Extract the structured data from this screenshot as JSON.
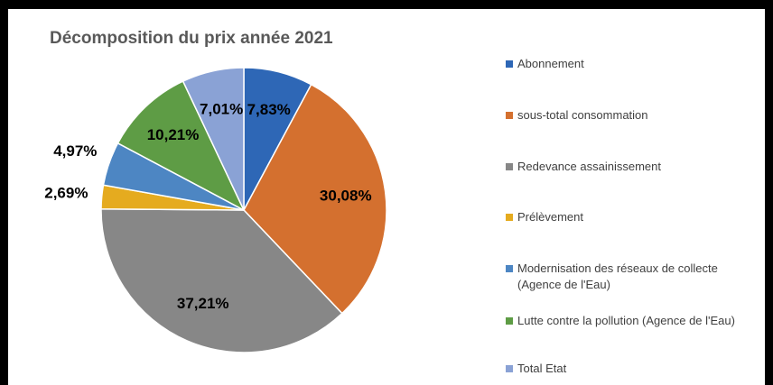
{
  "chart_data": {
    "type": "pie",
    "title": "Décomposition du prix année 2021",
    "categories": [
      "Abonnement",
      "sous-total consommation",
      "Redevance assainissement",
      "Prélèvement",
      "Modernisation des réseaux de collecte (Agence de l'Eau)",
      "Lutte contre la pollution (Agence de l'Eau)",
      "Total Etat"
    ],
    "values": [
      7.83,
      30.08,
      37.21,
      2.69,
      4.97,
      10.21,
      7.01
    ],
    "value_labels": [
      "7,83%",
      "30,08%",
      "37,21%",
      "2,69%",
      "4,97%",
      "10,21%",
      "7,01%"
    ],
    "colors": [
      "#2e67b6",
      "#d4702f",
      "#878787",
      "#e5ab1f",
      "#4d86c3",
      "#5e9c45",
      "#8aa2d5"
    ],
    "legend": "right"
  }
}
